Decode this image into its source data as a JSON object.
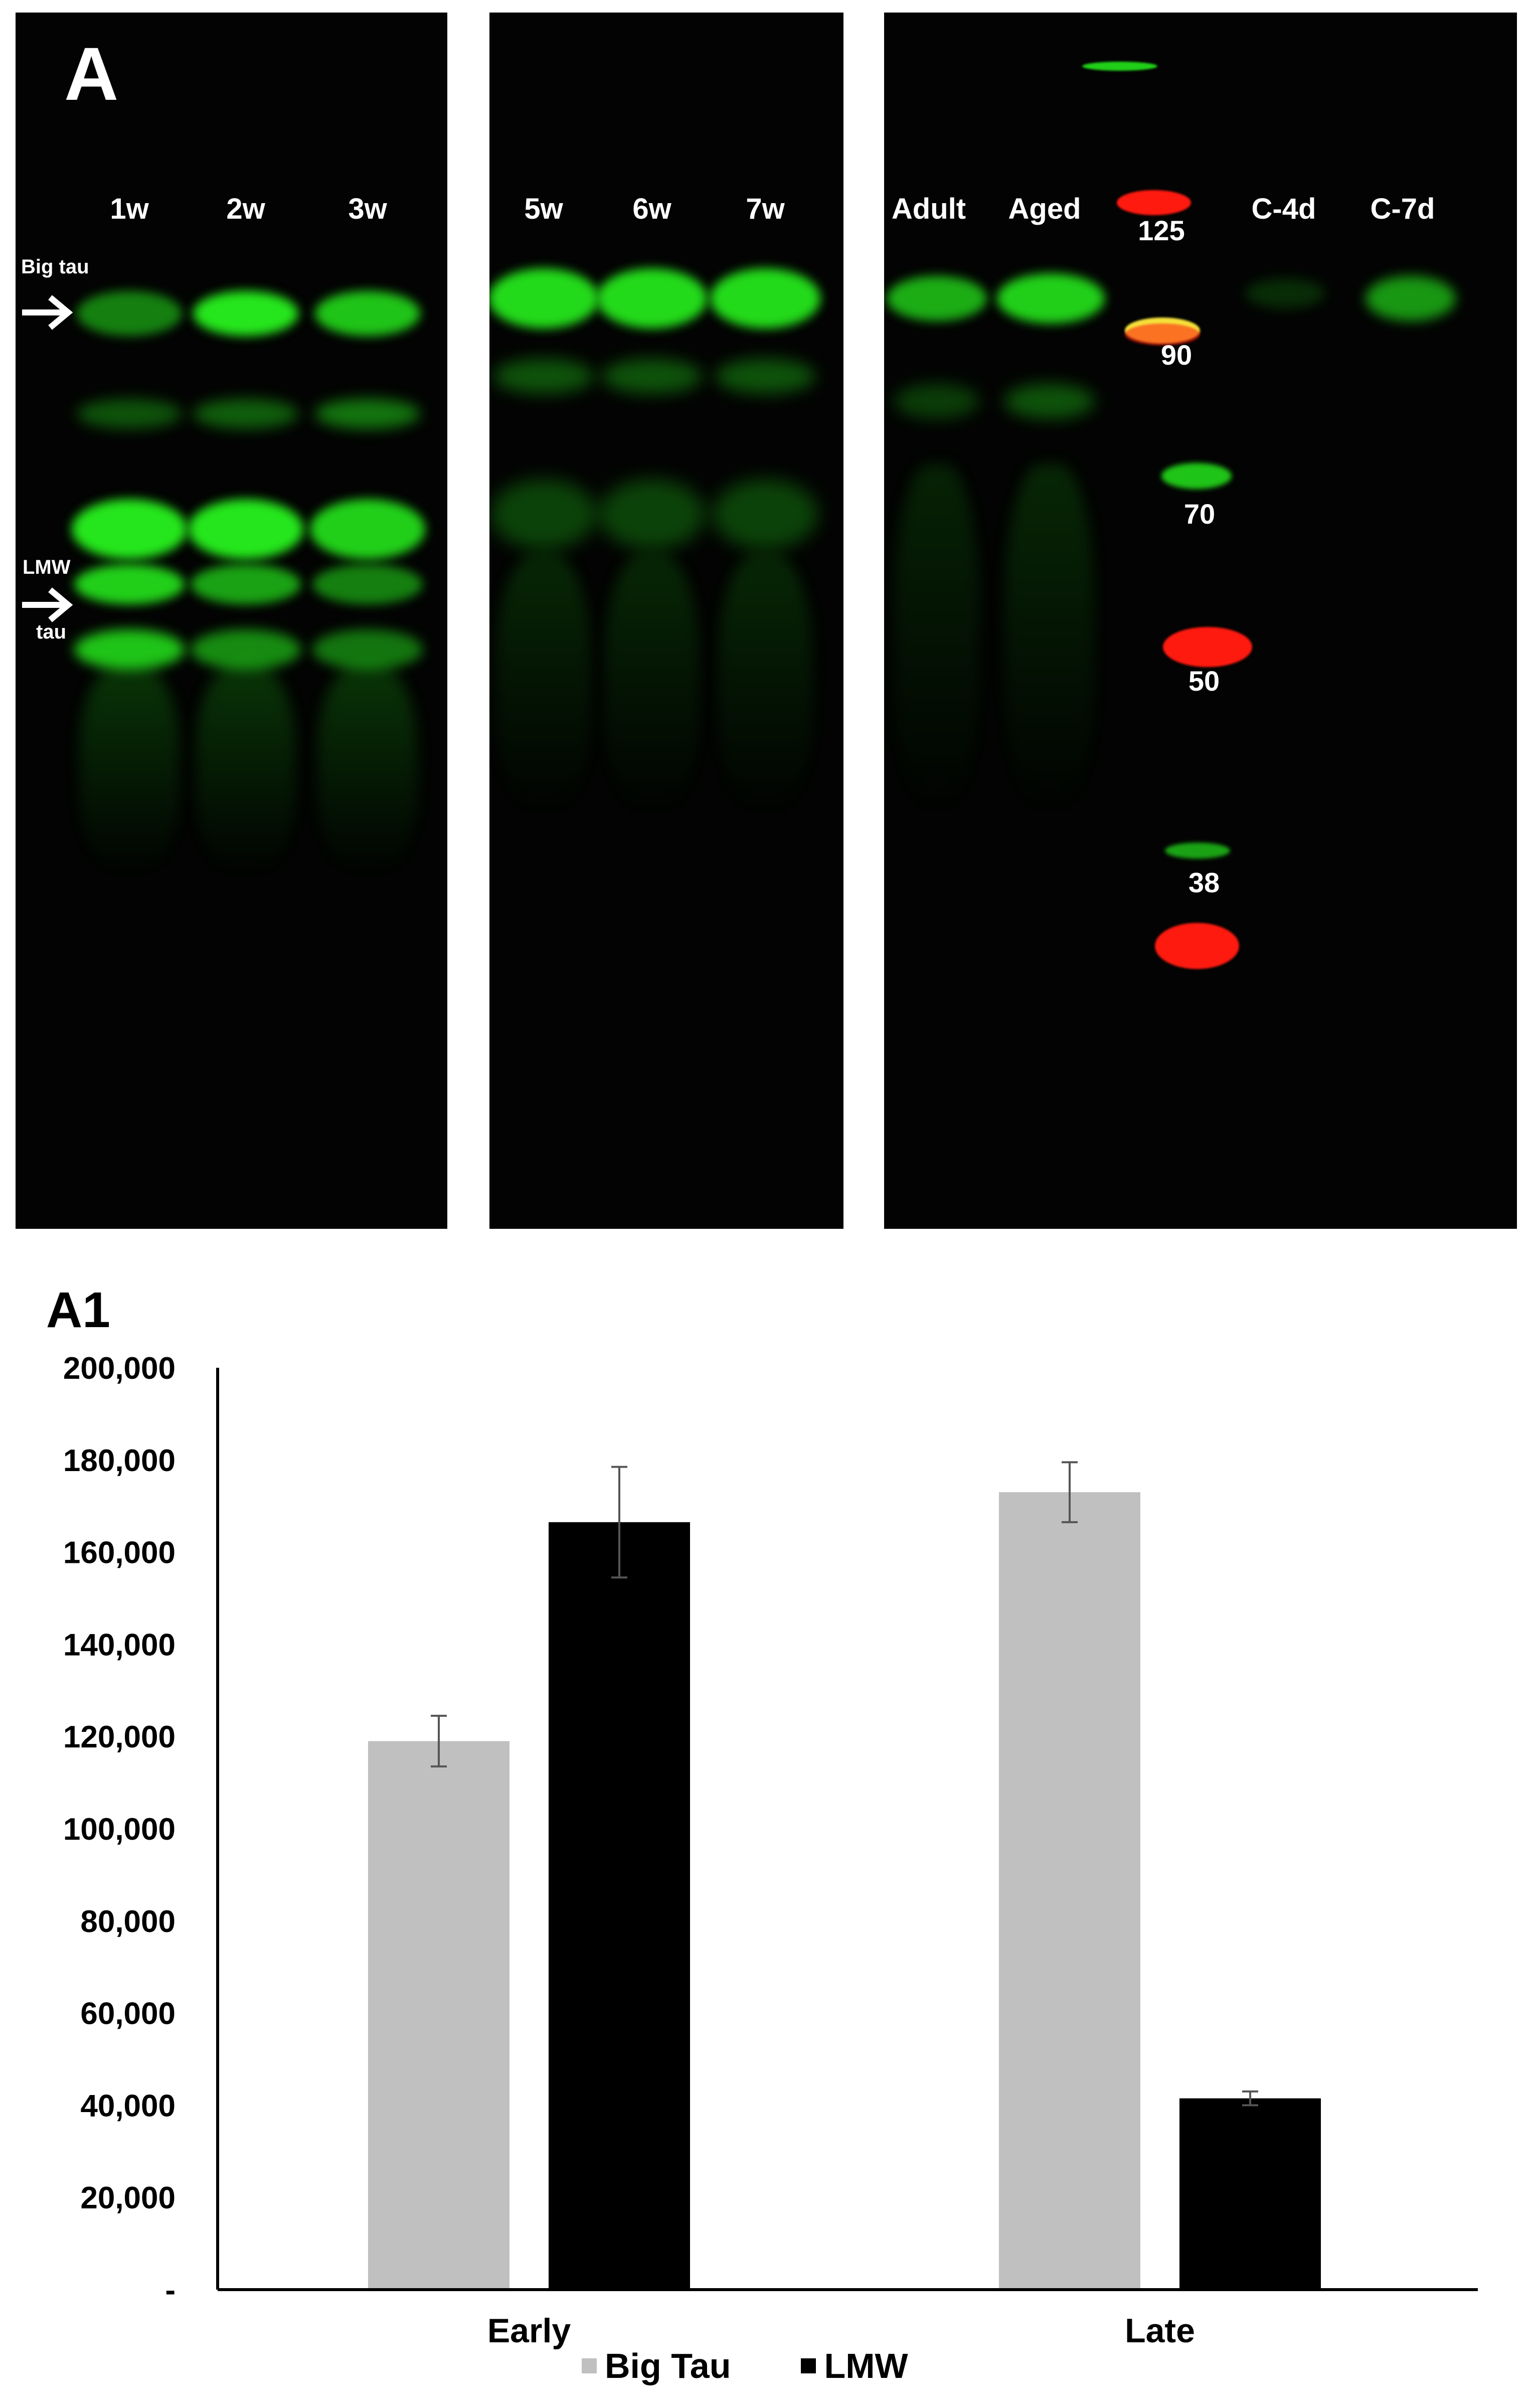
{
  "panel_a": {
    "letter": "A",
    "lanes_panel1": [
      "1w",
      "2w",
      "3w"
    ],
    "lanes_panel2": [
      "5w",
      "6w",
      "7w"
    ],
    "lanes_panel3": [
      "Adult",
      "Aged",
      "C-4d",
      "C-7d"
    ],
    "markers": [
      "125",
      "90",
      "70",
      "50",
      "38"
    ],
    "annotations": {
      "big_tau": "Big tau",
      "lmw_line1": "LMW",
      "lmw_line2": "tau"
    },
    "colors": {
      "band_green": "#25e61c",
      "marker_red": "#ff1a10",
      "marker_yellow": "#f5e03a",
      "background": "#020302"
    }
  },
  "chart_data": {
    "letter": "A1",
    "type": "bar",
    "categories": [
      "Early",
      "Late"
    ],
    "series": [
      {
        "name": "Big Tau",
        "color": "#c0c0c0",
        "values": [
          119000,
          173000
        ],
        "errors": [
          5500,
          6500
        ]
      },
      {
        "name": "LMW",
        "color": "#000000",
        "values": [
          166500,
          41500
        ],
        "errors": [
          12000,
          1500
        ]
      }
    ],
    "y_ticks": [
      "-",
      "20,000",
      "40,000",
      "60,000",
      "80,000",
      "100,000",
      "120,000",
      "140,000",
      "160,000",
      "180,000",
      "200,000"
    ],
    "ylim": [
      0,
      200000
    ],
    "grid": false,
    "legend_position": "bottom"
  }
}
